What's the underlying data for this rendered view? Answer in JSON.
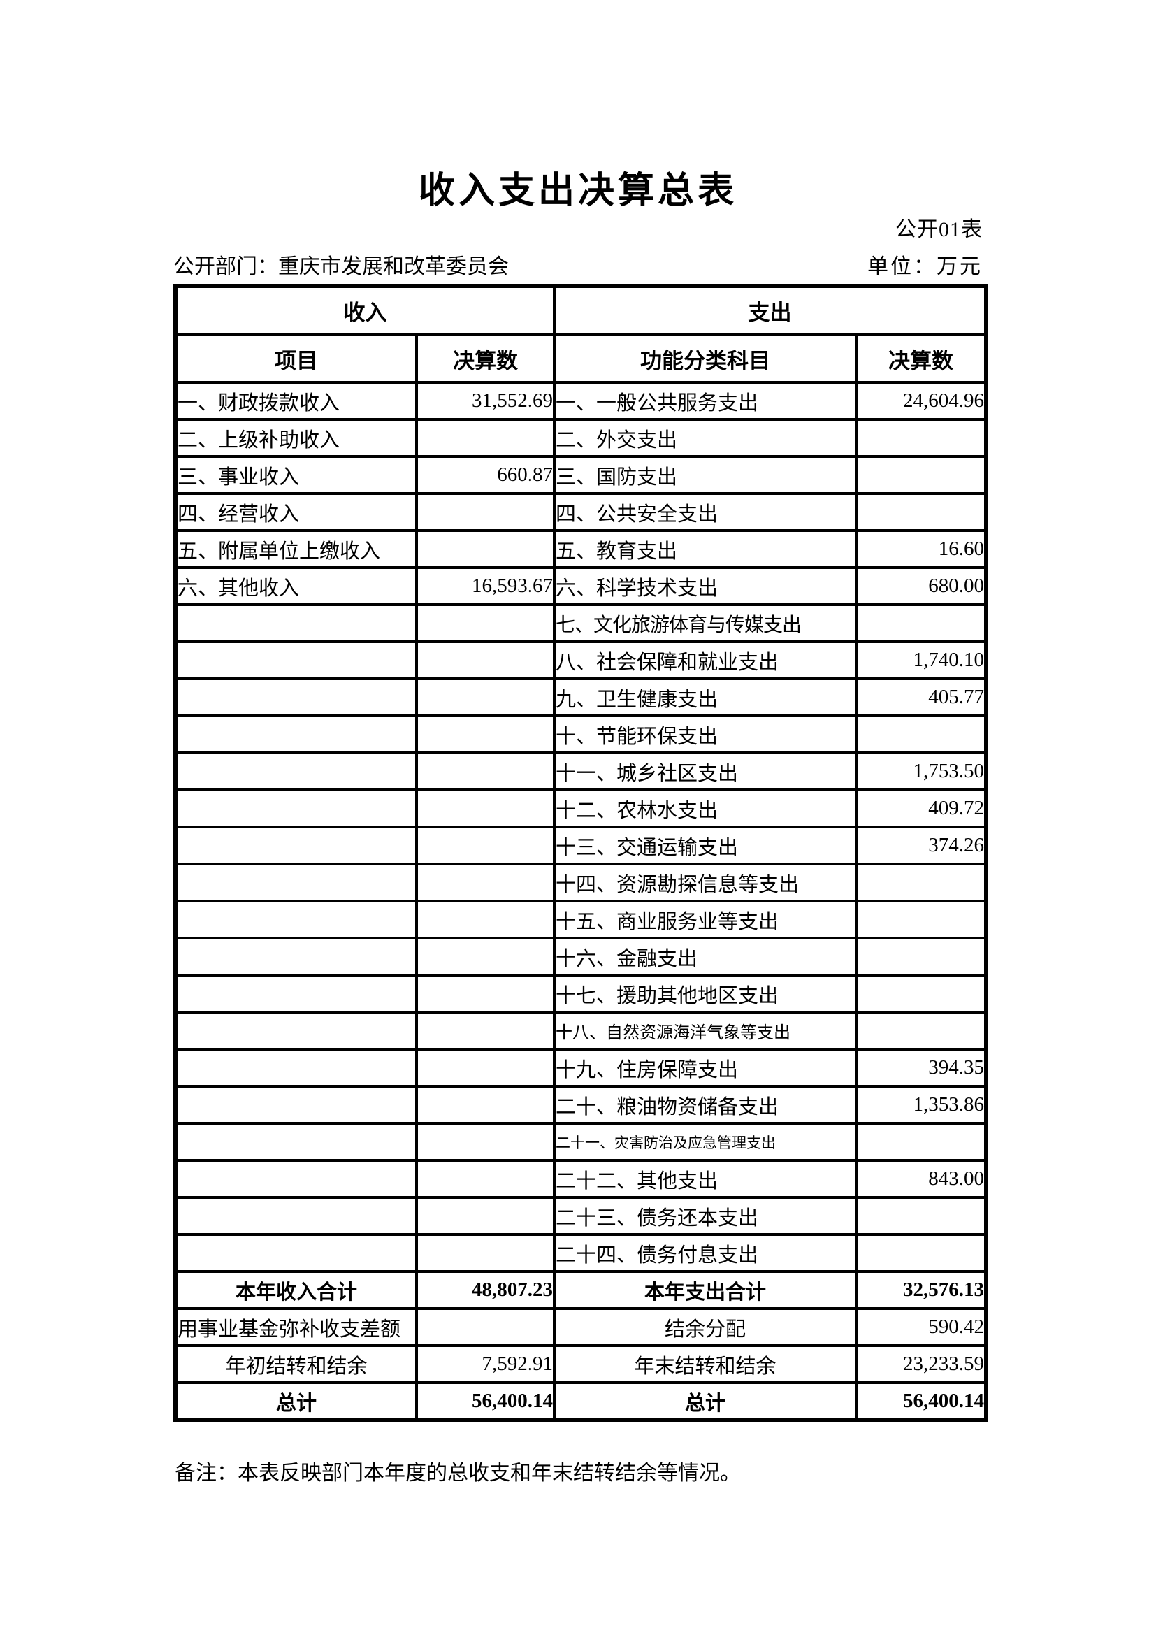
{
  "page": {
    "title": "收入支出决算总表",
    "table_code": "公开01表",
    "department_label": "公开部门：重庆市发展和改革委员会",
    "unit_label": "单位：万元",
    "note": "备注：本表反映部门本年度的总收支和年末结转结余等情况。"
  },
  "table": {
    "income_header": "收入",
    "expense_header": "支出",
    "col_headers": {
      "income_item": "项目",
      "income_amount": "决算数",
      "expense_item": "功能分类科目",
      "expense_amount": "决算数"
    },
    "rows": [
      {
        "income_item": "一、财政拨款收入",
        "income_amount": "31,552.69",
        "expense_item": "一、一般公共服务支出",
        "expense_amount": "24,604.96"
      },
      {
        "income_item": "二、上级补助收入",
        "income_amount": "",
        "expense_item": "二、外交支出",
        "expense_amount": ""
      },
      {
        "income_item": "三、事业收入",
        "income_amount": "660.87",
        "expense_item": "三、国防支出",
        "expense_amount": ""
      },
      {
        "income_item": "四、经营收入",
        "income_amount": "",
        "expense_item": "四、公共安全支出",
        "expense_amount": ""
      },
      {
        "income_item": "五、附属单位上缴收入",
        "income_amount": "",
        "expense_item": "五、教育支出",
        "expense_amount": "16.60"
      },
      {
        "income_item": "六、其他收入",
        "income_amount": "16,593.67",
        "expense_item": "六、科学技术支出",
        "expense_amount": "680.00"
      },
      {
        "income_item": "",
        "income_amount": "",
        "expense_item": "七、文化旅游体育与传媒支出",
        "expense_amount": ""
      },
      {
        "income_item": "",
        "income_amount": "",
        "expense_item": "八、社会保障和就业支出",
        "expense_amount": "1,740.10"
      },
      {
        "income_item": "",
        "income_amount": "",
        "expense_item": "九、卫生健康支出",
        "expense_amount": "405.77"
      },
      {
        "income_item": "",
        "income_amount": "",
        "expense_item": "十、节能环保支出",
        "expense_amount": ""
      },
      {
        "income_item": "",
        "income_amount": "",
        "expense_item": "十一、城乡社区支出",
        "expense_amount": "1,753.50"
      },
      {
        "income_item": "",
        "income_amount": "",
        "expense_item": "十二、农林水支出",
        "expense_amount": "409.72"
      },
      {
        "income_item": "",
        "income_amount": "",
        "expense_item": "十三、交通运输支出",
        "expense_amount": "374.26"
      },
      {
        "income_item": "",
        "income_amount": "",
        "expense_item": "十四、资源勘探信息等支出",
        "expense_amount": ""
      },
      {
        "income_item": "",
        "income_amount": "",
        "expense_item": "十五、商业服务业等支出",
        "expense_amount": ""
      },
      {
        "income_item": "",
        "income_amount": "",
        "expense_item": "十六、金融支出",
        "expense_amount": ""
      },
      {
        "income_item": "",
        "income_amount": "",
        "expense_item": "十七、援助其他地区支出",
        "expense_amount": ""
      },
      {
        "income_item": "",
        "income_amount": "",
        "expense_item": "十八、自然资源海洋气象等支出",
        "expense_amount": ""
      },
      {
        "income_item": "",
        "income_amount": "",
        "expense_item": "十九、住房保障支出",
        "expense_amount": "394.35"
      },
      {
        "income_item": "",
        "income_amount": "",
        "expense_item": "二十、粮油物资储备支出",
        "expense_amount": "1,353.86"
      },
      {
        "income_item": "",
        "income_amount": "",
        "expense_item": "二十一、灾害防治及应急管理支出",
        "expense_amount": ""
      },
      {
        "income_item": "",
        "income_amount": "",
        "expense_item": "二十二、其他支出",
        "expense_amount": "843.00"
      },
      {
        "income_item": "",
        "income_amount": "",
        "expense_item": "二十三、债务还本支出",
        "expense_amount": ""
      },
      {
        "income_item": "",
        "income_amount": "",
        "expense_item": "二十四、债务付息支出",
        "expense_amount": ""
      }
    ],
    "summary_rows": [
      {
        "income_item": "本年收入合计",
        "income_amount": "48,807.23",
        "expense_item": "本年支出合计",
        "expense_amount": "32,576.13"
      },
      {
        "income_item": "用事业基金弥补收支差额",
        "income_amount": "",
        "expense_item": "结余分配",
        "expense_amount": "590.42"
      },
      {
        "income_item": "年初结转和结余",
        "income_amount": "7,592.91",
        "expense_item": "年末结转和结余",
        "expense_amount": "23,233.59"
      },
      {
        "income_item": "总计",
        "income_amount": "56,400.14",
        "expense_item": "总计",
        "expense_amount": "56,400.14"
      }
    ]
  }
}
